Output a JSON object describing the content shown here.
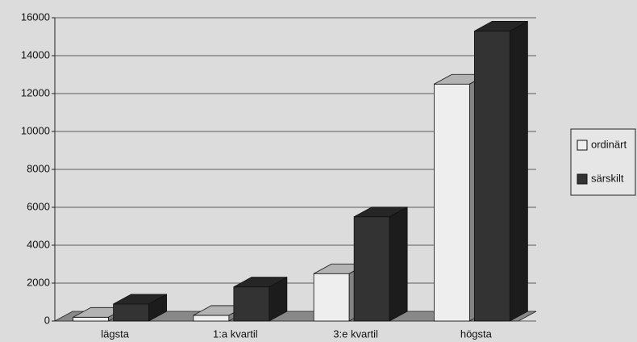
{
  "chart_data": {
    "type": "bar3d",
    "categories": [
      "lägsta",
      "1:a kvartil",
      "3:e kvartil",
      "högsta"
    ],
    "series": [
      {
        "name": "ordinärt",
        "color": "#eeeeee",
        "values": [
          200,
          300,
          2500,
          12500
        ]
      },
      {
        "name": "särskilt",
        "color": "#333333",
        "values": [
          900,
          1800,
          5500,
          15300
        ]
      }
    ],
    "ylim": [
      0,
      16000
    ],
    "yticks": [
      0,
      2000,
      4000,
      6000,
      8000,
      10000,
      12000,
      14000,
      16000
    ],
    "grid": true,
    "legend": "right"
  }
}
